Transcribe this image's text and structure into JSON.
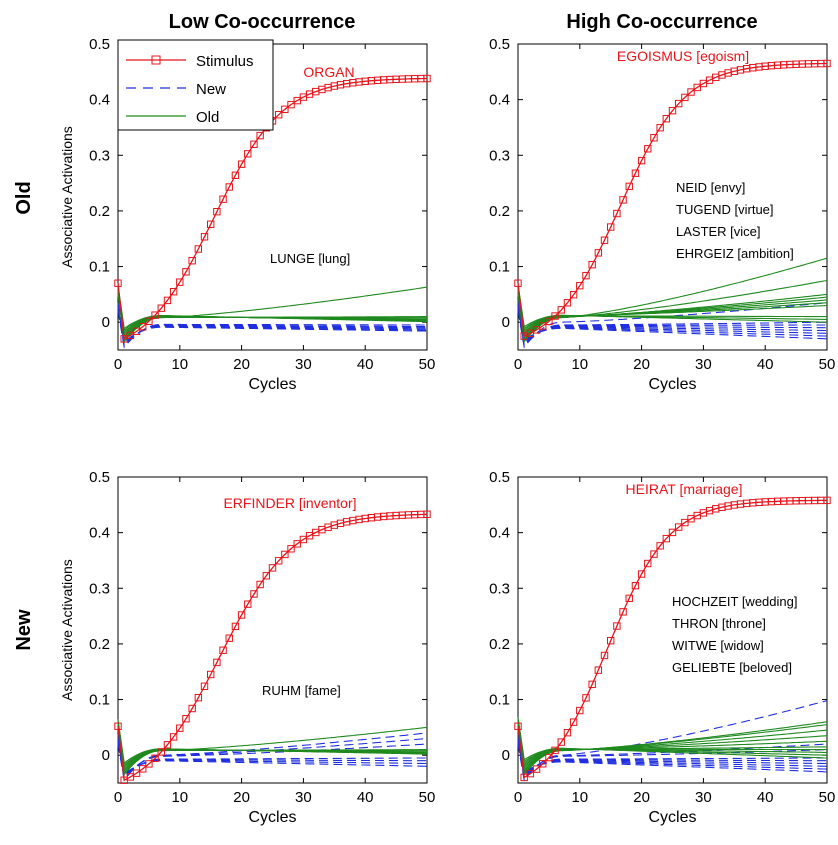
{
  "figure": {
    "column_titles": [
      "Low Co-occurrence",
      "High Co-occurrence"
    ],
    "row_titles": [
      "Old",
      "New"
    ],
    "legend": [
      {
        "label": "Stimulus",
        "color": "#e8141b",
        "style": "solid-square"
      },
      {
        "label": "New",
        "color": "#1f2fe0",
        "style": "dashed"
      },
      {
        "label": "Old",
        "color": "#1f8a1f",
        "style": "solid"
      }
    ],
    "colors": {
      "stimulus": "#e8141b",
      "new": "#1f2fe0",
      "old": "#1f8a1f"
    }
  },
  "chart_data": [
    {
      "type": "line",
      "row": "Old",
      "column": "Low Co-occurrence",
      "xlabel": "Cycles",
      "ylabel": "Associative Activations",
      "xlim": [
        0,
        50
      ],
      "ylim": [
        -0.05,
        0.5
      ],
      "xticks": [
        0,
        10,
        20,
        30,
        40,
        50
      ],
      "yticks": [
        0,
        0.1,
        0.2,
        0.3,
        0.4,
        0.5
      ],
      "stimulus_label": "ORGAN",
      "word_labels": [
        "LUNGE [lung]"
      ],
      "stimulus": {
        "start": 0.07,
        "dip": -0.03,
        "max": 0.438,
        "mid": 15.5,
        "k": 0.18
      },
      "old_curves": [
        0.063,
        0.01,
        0.008,
        0.006,
        0.005,
        0.004,
        0.003,
        0.002,
        0.001
      ],
      "new_curves": [
        -0.005,
        -0.008,
        -0.01,
        -0.012,
        -0.014,
        -0.016
      ]
    },
    {
      "type": "line",
      "row": "Old",
      "column": "High Co-occurrence",
      "xlabel": "Cycles",
      "ylabel": "",
      "xlim": [
        0,
        50
      ],
      "ylim": [
        -0.05,
        0.5
      ],
      "xticks": [
        0,
        10,
        20,
        30,
        40,
        50
      ],
      "yticks": [
        0,
        0.1,
        0.2,
        0.3,
        0.4,
        0.5
      ],
      "stimulus_label": "EGOISMUS [egoism]",
      "word_labels": [
        "NEID [envy]",
        "TUGEND [virtue]",
        "LASTER [vice]",
        "EHRGEIZ [ambition]"
      ],
      "stimulus": {
        "start": 0.07,
        "dip": -0.025,
        "max": 0.465,
        "mid": 16.5,
        "k": 0.19
      },
      "old_curves": [
        0.115,
        0.075,
        0.05,
        0.045,
        0.04,
        0.035,
        0.03,
        0.01,
        0.005,
        0.0
      ],
      "new_curves": [
        0.035,
        0.0,
        -0.005,
        -0.01,
        -0.015,
        -0.02,
        -0.025,
        -0.03
      ]
    },
    {
      "type": "line",
      "row": "New",
      "column": "Low Co-occurrence",
      "xlabel": "Cycles",
      "ylabel": "Associative Activations",
      "xlim": [
        0,
        50
      ],
      "ylim": [
        -0.05,
        0.5
      ],
      "xticks": [
        0,
        10,
        20,
        30,
        40,
        50
      ],
      "yticks": [
        0,
        0.1,
        0.2,
        0.3,
        0.4,
        0.5
      ],
      "stimulus_label": "ERFINDER [inventor]",
      "word_labels": [
        "RUHM [fame]"
      ],
      "stimulus": {
        "start": 0.052,
        "dip": -0.045,
        "max": 0.433,
        "mid": 16.5,
        "k": 0.17
      },
      "old_curves": [
        0.05,
        0.01,
        0.008,
        0.006,
        0.005,
        0.004,
        0.003,
        0.002
      ],
      "new_curves": [
        0.04,
        0.03,
        0.02,
        -0.005,
        -0.01,
        -0.015,
        -0.02
      ]
    },
    {
      "type": "line",
      "row": "New",
      "column": "High Co-occurrence",
      "xlabel": "Cycles",
      "ylabel": "",
      "xlim": [
        0,
        50
      ],
      "ylim": [
        -0.05,
        0.5
      ],
      "xticks": [
        0,
        10,
        20,
        30,
        40,
        50
      ],
      "yticks": [
        0,
        0.1,
        0.2,
        0.3,
        0.4,
        0.5
      ],
      "stimulus_label": "HEIRAT [marriage]",
      "word_labels": [
        "HOCHZEIT [wedding]",
        "THRON [throne]",
        "WITWE [widow]",
        "GELIEBTE [beloved]"
      ],
      "stimulus": {
        "start": 0.052,
        "dip": -0.04,
        "max": 0.458,
        "mid": 14.5,
        "k": 0.2
      },
      "old_curves": [
        0.06,
        0.055,
        0.045,
        0.035,
        0.025,
        0.015,
        0.01,
        0.005,
        0.0,
        -0.005
      ],
      "new_curves": [
        0.098,
        0.02,
        0.01,
        -0.005,
        -0.01,
        -0.015,
        -0.02,
        -0.025,
        -0.03
      ]
    }
  ]
}
